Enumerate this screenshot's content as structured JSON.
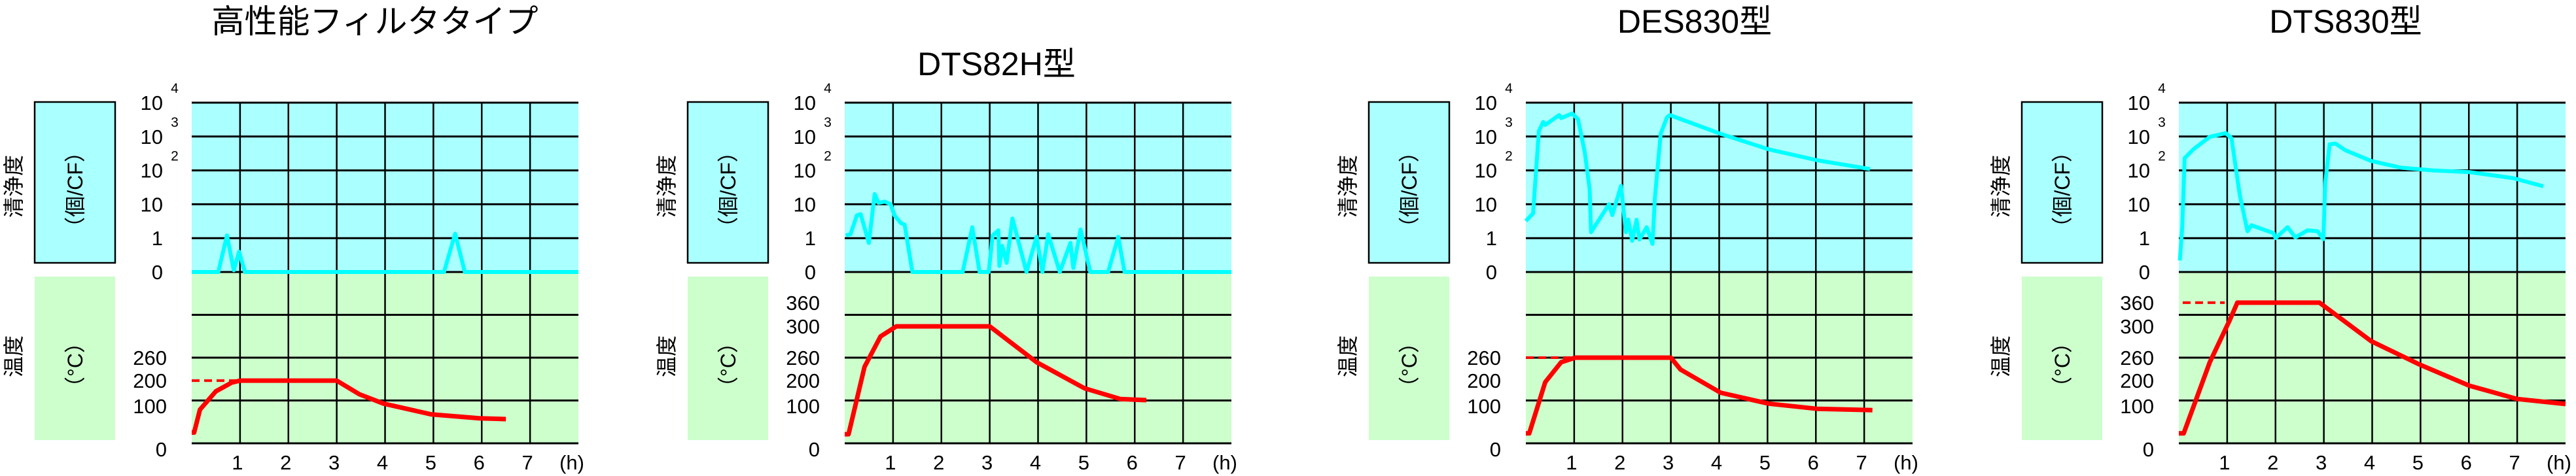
{
  "colors": {
    "clean_bg": "#aaffff",
    "temp_bg": "#ccffcc",
    "clean_line": "#00ffff",
    "temp_line": "#ff0000",
    "grid": "#000000"
  },
  "chart_data": [
    {
      "type": "line",
      "title": "高性能フィルタタイプ",
      "clean_label": "清浄度",
      "clean_unit": "（個/CF）",
      "temp_label": "温度",
      "temp_unit": "（°C）",
      "x_ticks": [
        "1",
        "2",
        "3",
        "4",
        "5",
        "6",
        "7"
      ],
      "x_unit": "(h)",
      "xlim": [
        0,
        8
      ],
      "clean_ticks": [
        {
          "base": "0",
          "exp": ""
        },
        {
          "base": "1",
          "exp": ""
        },
        {
          "base": "10",
          "exp": ""
        },
        {
          "base": "10",
          "exp": "2"
        },
        {
          "base": "10",
          "exp": "3"
        },
        {
          "base": "10",
          "exp": "4"
        }
      ],
      "temp_ticks": [
        0,
        100,
        200,
        260
      ],
      "clean_series": [
        [
          0,
          0
        ],
        [
          0.55,
          0
        ],
        [
          0.73,
          1.2
        ],
        [
          0.87,
          0.05
        ],
        [
          0.98,
          0.6
        ],
        [
          1.1,
          0
        ],
        [
          5.22,
          0
        ],
        [
          5.45,
          1.35
        ],
        [
          5.65,
          0
        ],
        [
          8,
          0
        ]
      ],
      "temp_series": [
        [
          0,
          25
        ],
        [
          0.05,
          25
        ],
        [
          0.17,
          78
        ],
        [
          0.5,
          145
        ],
        [
          0.83,
          190
        ],
        [
          1,
          200
        ],
        [
          3,
          200
        ],
        [
          3.47,
          130
        ],
        [
          3.97,
          92
        ],
        [
          4.96,
          67
        ],
        [
          5.95,
          58
        ],
        [
          6.5,
          56
        ]
      ],
      "temp_setpoint": {
        "value": 200,
        "x": [
          0,
          1
        ]
      }
    },
    {
      "type": "line",
      "title": "DTS82H型",
      "clean_label": "清浄度",
      "clean_unit": "（個/CF）",
      "temp_label": "温度",
      "temp_unit": "（°C）",
      "x_ticks": [
        "1",
        "2",
        "3",
        "4",
        "5",
        "6",
        "7"
      ],
      "x_unit": "(h)",
      "xlim": [
        0,
        8
      ],
      "clean_ticks": [
        {
          "base": "0",
          "exp": ""
        },
        {
          "base": "1",
          "exp": ""
        },
        {
          "base": "10",
          "exp": ""
        },
        {
          "base": "10",
          "exp": "2"
        },
        {
          "base": "10",
          "exp": "3"
        },
        {
          "base": "10",
          "exp": "4"
        }
      ],
      "temp_ticks": [
        0,
        100,
        200,
        260,
        300,
        360
      ],
      "clean_series": [
        [
          0.02,
          1.2
        ],
        [
          0.12,
          1.3
        ],
        [
          0.25,
          4.7
        ],
        [
          0.33,
          5.1
        ],
        [
          0.5,
          0.86
        ],
        [
          0.62,
          20
        ],
        [
          0.7,
          11
        ],
        [
          0.83,
          12
        ],
        [
          0.95,
          10
        ],
        [
          1.03,
          4.7
        ],
        [
          1.16,
          2.8
        ],
        [
          1.24,
          2.5
        ],
        [
          1.4,
          0
        ],
        [
          2.44,
          0
        ],
        [
          2.64,
          2.1
        ],
        [
          2.79,
          0
        ],
        [
          2.98,
          0
        ],
        [
          3.06,
          1.2
        ],
        [
          3.18,
          1.7
        ],
        [
          3.2,
          0.18
        ],
        [
          3.26,
          0.77
        ],
        [
          3.35,
          0.27
        ],
        [
          3.47,
          3.8
        ],
        [
          3.76,
          0
        ],
        [
          3.97,
          1.1
        ],
        [
          4.09,
          0
        ],
        [
          4.21,
          1.3
        ],
        [
          4.45,
          0
        ],
        [
          4.67,
          0.86
        ],
        [
          4.73,
          0.12
        ],
        [
          4.88,
          1.8
        ],
        [
          5.08,
          0
        ],
        [
          5.45,
          0
        ],
        [
          5.66,
          1.1
        ],
        [
          5.79,
          0
        ],
        [
          8,
          0
        ]
      ],
      "temp_series": [
        [
          0,
          21
        ],
        [
          0.08,
          21
        ],
        [
          0.41,
          236
        ],
        [
          0.74,
          287
        ],
        [
          1.07,
          300
        ],
        [
          3,
          300
        ],
        [
          3.97,
          248
        ],
        [
          4.96,
          161
        ],
        [
          5.7,
          106
        ],
        [
          6.24,
          100
        ]
      ]
    },
    {
      "type": "line",
      "title": "DES830型",
      "clean_label": "清浄度",
      "clean_unit": "（個/CF）",
      "temp_label": "温度",
      "temp_unit": "（°C）",
      "x_ticks": [
        "1",
        "2",
        "3",
        "4",
        "5",
        "6",
        "7"
      ],
      "x_unit": "(h)",
      "xlim": [
        0,
        8
      ],
      "clean_ticks": [
        {
          "base": "0",
          "exp": ""
        },
        {
          "base": "1",
          "exp": ""
        },
        {
          "base": "10",
          "exp": ""
        },
        {
          "base": "10",
          "exp": "2"
        },
        {
          "base": "10",
          "exp": "3"
        },
        {
          "base": "10",
          "exp": "4"
        }
      ],
      "temp_ticks": [
        0,
        100,
        200,
        260
      ],
      "clean_series": [
        [
          0,
          3.2
        ],
        [
          0.15,
          5.4
        ],
        [
          0.27,
          1450
        ],
        [
          0.36,
          2700
        ],
        [
          0.4,
          2200
        ],
        [
          0.69,
          4300
        ],
        [
          0.73,
          3500
        ],
        [
          0.96,
          4800
        ],
        [
          1.08,
          3200
        ],
        [
          1.22,
          340
        ],
        [
          1.32,
          28
        ],
        [
          1.35,
          1.5
        ],
        [
          1.72,
          10
        ],
        [
          1.79,
          4.8
        ],
        [
          1.97,
          35
        ],
        [
          2.07,
          1.5
        ],
        [
          2.12,
          3.5
        ],
        [
          2.2,
          0.92
        ],
        [
          2.29,
          3.5
        ],
        [
          2.35,
          0.96
        ],
        [
          2.5,
          2.1
        ],
        [
          2.62,
          0.83
        ],
        [
          2.67,
          15
        ],
        [
          2.79,
          1200
        ],
        [
          2.92,
          3700
        ],
        [
          2.98,
          4300
        ],
        [
          4.03,
          1200
        ],
        [
          5.02,
          420
        ],
        [
          6.02,
          200
        ],
        [
          7.12,
          110
        ]
      ],
      "temp_series": [
        [
          0,
          23
        ],
        [
          0.07,
          23
        ],
        [
          0.4,
          192
        ],
        [
          0.73,
          248
        ],
        [
          1.02,
          260
        ],
        [
          3,
          260
        ],
        [
          3.2,
          229
        ],
        [
          4.03,
          138
        ],
        [
          5.02,
          92
        ],
        [
          6.02,
          80
        ],
        [
          7.17,
          77
        ]
      ],
      "temp_setpoint": {
        "value": 260,
        "x": [
          0,
          1
        ]
      }
    },
    {
      "type": "line",
      "title": "DTS830型",
      "clean_label": "清浄度",
      "clean_unit": "（個/CF）",
      "temp_label": "温度",
      "temp_unit": "（°C）",
      "x_ticks": [
        "1",
        "2",
        "3",
        "4",
        "5",
        "6",
        "7"
      ],
      "x_unit": "(h)",
      "xlim": [
        0,
        8
      ],
      "clean_ticks": [
        {
          "base": "0",
          "exp": ""
        },
        {
          "base": "1",
          "exp": ""
        },
        {
          "base": "10",
          "exp": ""
        },
        {
          "base": "10",
          "exp": "2"
        },
        {
          "base": "10",
          "exp": "3"
        },
        {
          "base": "10",
          "exp": "4"
        }
      ],
      "temp_ticks": [
        0,
        100,
        200,
        260,
        300,
        360
      ],
      "clean_series": [
        [
          0.02,
          0.34
        ],
        [
          0.07,
          2.1
        ],
        [
          0.12,
          230
        ],
        [
          0.31,
          430
        ],
        [
          0.64,
          980
        ],
        [
          0.97,
          1260
        ],
        [
          1.09,
          890
        ],
        [
          1.26,
          19
        ],
        [
          1.42,
          1.6
        ],
        [
          1.5,
          2.4
        ],
        [
          1.96,
          1.4
        ],
        [
          2,
          1.0
        ],
        [
          2.25,
          2.1
        ],
        [
          2.41,
          1.05
        ],
        [
          2.66,
          1.7
        ],
        [
          2.87,
          1.6
        ],
        [
          2.99,
          0.97
        ],
        [
          3.03,
          44
        ],
        [
          3.12,
          590
        ],
        [
          3.24,
          620
        ],
        [
          3.45,
          390
        ],
        [
          3.98,
          190
        ],
        [
          4.6,
          120
        ],
        [
          5.26,
          100
        ],
        [
          6.01,
          89
        ],
        [
          6.92,
          59
        ],
        [
          7.54,
          34
        ]
      ],
      "temp_series": [
        [
          0,
          23
        ],
        [
          0.1,
          23
        ],
        [
          0.64,
          248
        ],
        [
          1.05,
          315
        ],
        [
          1.21,
          360
        ],
        [
          2.91,
          360
        ],
        [
          3.98,
          281
        ],
        [
          4.98,
          242
        ],
        [
          6.01,
          174
        ],
        [
          7,
          106
        ],
        [
          8,
          91
        ]
      ],
      "temp_setpoint": {
        "value": 360,
        "x": [
          0.08,
          0.95
        ]
      }
    }
  ]
}
